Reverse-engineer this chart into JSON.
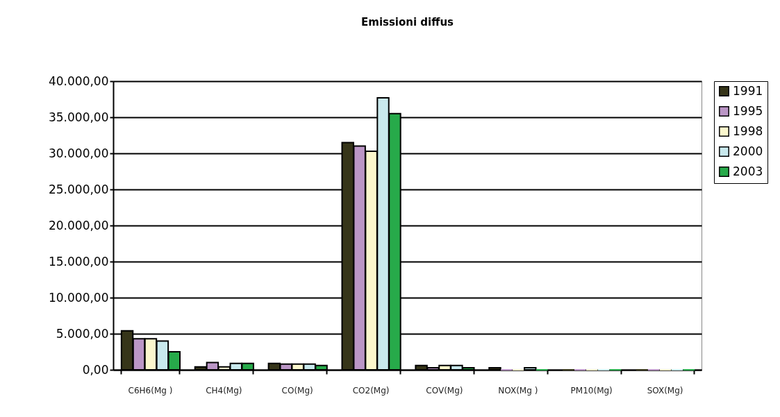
{
  "chart_data": {
    "type": "bar",
    "title": "Emissioni diffus",
    "categories": [
      "C6H6(Mg )",
      "CH4(Mg)",
      "CO(Mg)",
      "CO2(Mg)",
      "COV(Mg)",
      "NOX(Mg )",
      "PM10(Mg)",
      "SOX(Mg)"
    ],
    "series": [
      {
        "name": "1991",
        "color": "#363519",
        "values": [
          5400,
          400,
          900,
          31500,
          600,
          300,
          0,
          0
        ]
      },
      {
        "name": "1995",
        "color": "#bb96c6",
        "values": [
          4300,
          1000,
          800,
          31000,
          300,
          0,
          0,
          0
        ]
      },
      {
        "name": "1998",
        "color": "#fbf7cd",
        "values": [
          4300,
          400,
          800,
          30300,
          600,
          0,
          0,
          0
        ]
      },
      {
        "name": "2000",
        "color": "#c9e9ed",
        "values": [
          4000,
          900,
          800,
          37700,
          600,
          300,
          0,
          0
        ]
      },
      {
        "name": "2003",
        "color": "#27aa4a",
        "values": [
          2500,
          900,
          600,
          35500,
          300,
          0,
          0,
          0
        ]
      }
    ],
    "ylim": [
      0,
      40000
    ],
    "yticks": [
      {
        "value": 0,
        "label": "0,00"
      },
      {
        "value": 5000,
        "label": "5.000,00"
      },
      {
        "value": 10000,
        "label": "10.000,00"
      },
      {
        "value": 15000,
        "label": "15.000,00"
      },
      {
        "value": 20000,
        "label": "20.000,00"
      },
      {
        "value": 25000,
        "label": "25.000,00"
      },
      {
        "value": 30000,
        "label": "30.000,00"
      },
      {
        "value": 35000,
        "label": "35.000,00"
      },
      {
        "value": 40000,
        "label": "40.000,00"
      }
    ],
    "grid": "y",
    "legend": "right"
  }
}
